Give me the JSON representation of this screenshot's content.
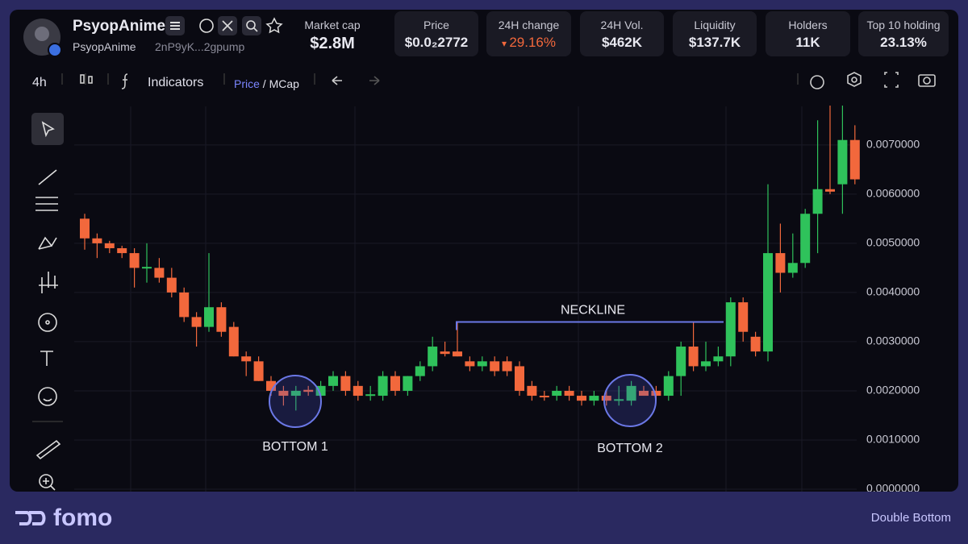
{
  "header": {
    "token_name": "PsyopAnime",
    "handle": "PsyopAnime",
    "address": "2nP9yK...2gpump",
    "stats": [
      {
        "label": "Market cap",
        "value": "$2.8M"
      },
      {
        "label": "Price",
        "value": "$0.0₂2772"
      },
      {
        "label": "24H change",
        "value": "29.16%"
      },
      {
        "label": "24H Vol.",
        "value": "$462K"
      },
      {
        "label": "Liquidity",
        "value": "$137.7K"
      },
      {
        "label": "Holders",
        "value": "11K"
      },
      {
        "label": "Top 10 holding",
        "value": "23.13%"
      }
    ]
  },
  "toolbar": {
    "interval": "4h",
    "indicators": "Indicators",
    "price": "Price",
    "separator": "/",
    "mcap": "MCap"
  },
  "chart_data": {
    "type": "candlestick",
    "up_color": "#2fc25b",
    "down_color": "#f2683c",
    "grid": true,
    "ylim": [
      0,
      0.0078
    ],
    "yticks": [
      {
        "value": 0,
        "label": "0.0000000"
      },
      {
        "value": 0.001,
        "label": "0.0010000"
      },
      {
        "value": 0.002,
        "label": "0.0020000"
      },
      {
        "value": 0.003,
        "label": "0.0030000"
      },
      {
        "value": 0.004,
        "label": "0.0040000"
      },
      {
        "value": 0.005,
        "label": "0.0050000"
      },
      {
        "value": 0.006,
        "label": "0.0060000"
      },
      {
        "value": 0.007,
        "label": "0.0070000"
      }
    ],
    "ohlc": [
      [
        0.0055,
        0.0056,
        0.00487,
        0.0051
      ],
      [
        0.0051,
        0.0052,
        0.0047,
        0.005
      ],
      [
        0.005,
        0.00505,
        0.0048,
        0.0049
      ],
      [
        0.0049,
        0.00495,
        0.0047,
        0.0048
      ],
      [
        0.0048,
        0.0049,
        0.0041,
        0.0045
      ],
      [
        0.0045,
        0.005,
        0.0042,
        0.00452
      ],
      [
        0.0045,
        0.0047,
        0.0042,
        0.0043
      ],
      [
        0.0043,
        0.0045,
        0.0039,
        0.004
      ],
      [
        0.004,
        0.0041,
        0.0034,
        0.0035
      ],
      [
        0.0035,
        0.0036,
        0.0029,
        0.0033
      ],
      [
        0.0033,
        0.0048,
        0.0032,
        0.0037
      ],
      [
        0.0037,
        0.0038,
        0.0031,
        0.0032
      ],
      [
        0.0033,
        0.0034,
        0.0027,
        0.0027
      ],
      [
        0.0027,
        0.0028,
        0.0023,
        0.0026
      ],
      [
        0.0026,
        0.0027,
        0.0022,
        0.0022
      ],
      [
        0.0022,
        0.0023,
        0.0019,
        0.002
      ],
      [
        0.002,
        0.0021,
        0.0017,
        0.0019
      ],
      [
        0.0019,
        0.0021,
        0.0016,
        0.002
      ],
      [
        0.00202,
        0.0021,
        0.0019,
        0.00198
      ],
      [
        0.0019,
        0.0022,
        0.0018,
        0.0021
      ],
      [
        0.0021,
        0.0024,
        0.002,
        0.0023
      ],
      [
        0.0023,
        0.0024,
        0.0019,
        0.002
      ],
      [
        0.0021,
        0.0022,
        0.0018,
        0.0019
      ],
      [
        0.0019,
        0.0021,
        0.0018,
        0.00193
      ],
      [
        0.0019,
        0.0024,
        0.0018,
        0.0023
      ],
      [
        0.0023,
        0.0024,
        0.0019,
        0.002
      ],
      [
        0.002,
        0.0023,
        0.0019,
        0.0023
      ],
      [
        0.0023,
        0.0026,
        0.0022,
        0.0025
      ],
      [
        0.0025,
        0.0031,
        0.0024,
        0.0029
      ],
      [
        0.0028,
        0.003,
        0.0027,
        0.00275
      ],
      [
        0.0028,
        0.0034,
        0.0027,
        0.0027
      ],
      [
        0.0026,
        0.0027,
        0.0024,
        0.0025
      ],
      [
        0.0025,
        0.0027,
        0.0024,
        0.0026
      ],
      [
        0.0026,
        0.0027,
        0.0023,
        0.0024
      ],
      [
        0.0026,
        0.0027,
        0.0023,
        0.0024
      ],
      [
        0.0025,
        0.0026,
        0.0019,
        0.002
      ],
      [
        0.0021,
        0.0022,
        0.0018,
        0.0019
      ],
      [
        0.0019,
        0.002,
        0.0018,
        0.00188
      ],
      [
        0.0019,
        0.0021,
        0.0018,
        0.002
      ],
      [
        0.002,
        0.0021,
        0.0018,
        0.0019
      ],
      [
        0.0019,
        0.002,
        0.0017,
        0.0018
      ],
      [
        0.0018,
        0.002,
        0.0017,
        0.0019
      ],
      [
        0.0019,
        0.002,
        0.0017,
        0.0018
      ],
      [
        0.0018,
        0.0021,
        0.0017,
        0.00183
      ],
      [
        0.0018,
        0.0022,
        0.0017,
        0.0021
      ],
      [
        0.002,
        0.0021,
        0.0019,
        0.0019
      ],
      [
        0.002,
        0.0021,
        0.0018,
        0.0019
      ],
      [
        0.0019,
        0.0024,
        0.0018,
        0.0023
      ],
      [
        0.0023,
        0.003,
        0.0019,
        0.0029
      ],
      [
        0.0029,
        0.0034,
        0.0024,
        0.0025
      ],
      [
        0.0025,
        0.003,
        0.0024,
        0.0026
      ],
      [
        0.0026,
        0.0029,
        0.0025,
        0.0027
      ],
      [
        0.0027,
        0.0039,
        0.0025,
        0.0038
      ],
      [
        0.0038,
        0.0039,
        0.003,
        0.0032
      ],
      [
        0.0031,
        0.0032,
        0.0027,
        0.0028
      ],
      [
        0.0028,
        0.0062,
        0.0026,
        0.0048
      ],
      [
        0.0048,
        0.0054,
        0.004,
        0.0044
      ],
      [
        0.0044,
        0.0052,
        0.0043,
        0.0046
      ],
      [
        0.0046,
        0.0057,
        0.0045,
        0.0056
      ],
      [
        0.0056,
        0.0075,
        0.0048,
        0.0061
      ],
      [
        0.0061,
        0.0078,
        0.006,
        0.00605
      ],
      [
        0.0062,
        0.0078,
        0.0056,
        0.0071
      ],
      [
        0.0071,
        0.0074,
        0.0062,
        0.0063
      ]
    ],
    "annotations": {
      "neckline": {
        "text": "NECKLINE",
        "value": 0.0034
      },
      "bottom_1": "BOTTOM 1",
      "bottom_2": "BOTTOM 2"
    }
  },
  "footer": {
    "brand": "fomo",
    "pattern": "Double Bottom"
  }
}
